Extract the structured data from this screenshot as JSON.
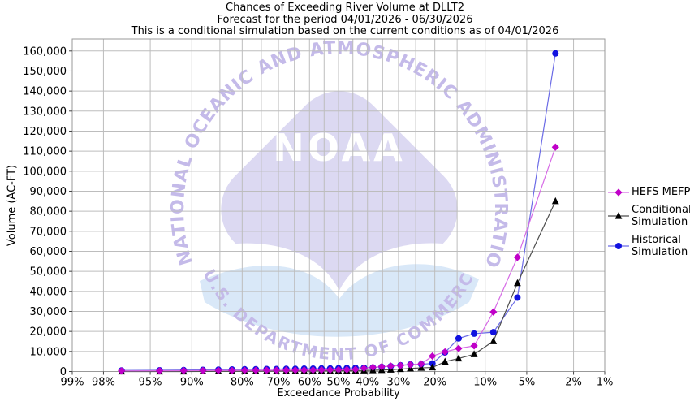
{
  "chart_data": {
    "type": "line",
    "title": "Chances of Exceeding River Volume at DLLT2",
    "subtitle": "Forecast for the period 04/01/2026 - 06/30/2026",
    "note": "This is a conditional simulation based on the current conditions as of 04/01/2026",
    "xlabel": "Exceedance Probability",
    "ylabel": "Volume (AC-FT)",
    "x_scale": "normal-probability",
    "x_direction": "descending-exceedance",
    "xlim_percent": [
      99,
      1
    ],
    "ylim": [
      0,
      166000
    ],
    "grid": true,
    "legend_position": "right",
    "x_tick_labels": [
      "99%",
      "98%",
      "95%",
      "90%",
      "80%",
      "70%",
      "60%",
      "50%",
      "40%",
      "30%",
      "20%",
      "10%",
      "5%",
      "2%",
      "1%"
    ],
    "x_tick_values": [
      99,
      98,
      95,
      90,
      80,
      70,
      60,
      50,
      40,
      30,
      20,
      10,
      5,
      2,
      1
    ],
    "x_gridline_values": [
      98,
      95,
      90,
      85,
      80,
      75,
      70,
      65,
      60,
      55,
      50,
      45,
      40,
      35,
      30,
      25,
      20,
      15,
      10,
      5,
      2
    ],
    "y_tick_labels": [
      "0",
      "10,000",
      "20,000",
      "30,000",
      "40,000",
      "50,000",
      "60,000",
      "70,000",
      "80,000",
      "90,000",
      "100,000",
      "110,000",
      "120,000",
      "130,000",
      "140,000",
      "150,000",
      "160,000"
    ],
    "y_tick_values": [
      0,
      10000,
      20000,
      30000,
      40000,
      50000,
      60000,
      70000,
      80000,
      90000,
      100000,
      110000,
      120000,
      130000,
      140000,
      150000,
      160000
    ],
    "x": [
      97.1,
      94.1,
      91.2,
      88.2,
      85.3,
      82.4,
      79.4,
      76.5,
      73.5,
      70.6,
      67.6,
      64.7,
      61.8,
      58.8,
      55.9,
      52.9,
      50.0,
      47.1,
      44.1,
      41.2,
      38.2,
      35.3,
      32.4,
      29.4,
      26.5,
      23.5,
      20.6,
      17.6,
      14.7,
      11.8,
      8.8,
      5.9,
      2.9
    ],
    "series": [
      {
        "name": "HEFS MEFP",
        "marker": "diamond",
        "marker_color": "#c000c8",
        "line_color": "#d66ae6",
        "values": [
          300,
          350,
          400,
          450,
          500,
          500,
          550,
          550,
          600,
          600,
          650,
          650,
          700,
          700,
          750,
          800,
          850,
          900,
          1000,
          1600,
          2100,
          2400,
          2700,
          3000,
          3400,
          3800,
          7700,
          9800,
          11500,
          12800,
          29700,
          57000,
          112000
        ]
      },
      {
        "name": "Conditional Simulation",
        "marker": "triangle",
        "marker_color": "#000000",
        "line_color": "#4d4d4d",
        "values": [
          0,
          0,
          0,
          50,
          100,
          100,
          150,
          150,
          200,
          200,
          250,
          250,
          300,
          300,
          350,
          350,
          400,
          400,
          450,
          500,
          600,
          700,
          900,
          1200,
          1500,
          1800,
          2000,
          4900,
          6500,
          8600,
          15100,
          44100,
          85000
        ]
      },
      {
        "name": "Historical Simulation",
        "marker": "circle",
        "marker_color": "#1212e0",
        "line_color": "#6b6be6",
        "values": [
          500,
          600,
          700,
          800,
          900,
          1000,
          1100,
          1100,
          1200,
          1200,
          1300,
          1300,
          1400,
          1400,
          1500,
          1500,
          1600,
          1700,
          1800,
          1900,
          2000,
          2300,
          2600,
          3100,
          3500,
          3600,
          4000,
          9500,
          16500,
          18900,
          19600,
          36900,
          158800
        ]
      }
    ]
  },
  "watermark": {
    "arc_text_top": "NATIONAL OCEANIC AND ATMOSPHERIC ADMINISTRATION",
    "arc_text_bottom": "U.S. DEPARTMENT OF COMMERCE",
    "center_text": "NOAA",
    "colors": {
      "shape": "#dcd9f2",
      "sea": "#d9e8f8",
      "arc_text": "#c4bae9",
      "wordmark": "#ffffff"
    }
  }
}
